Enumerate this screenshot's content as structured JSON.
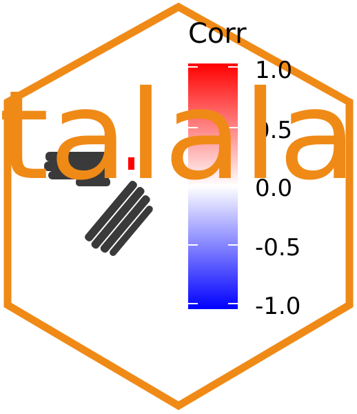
{
  "logo": {
    "word": "talala",
    "color": "#ef8a17"
  },
  "legend": {
    "title": "Corr",
    "ticks": [
      "1.0",
      "0.5",
      "0.0",
      "-0.5",
      "-1.0"
    ],
    "colors": {
      "high": "#ff0000",
      "mid": "#ffffff",
      "low": "#0000ff"
    }
  },
  "plot": {
    "label_color": "#3a3a3a",
    "positive_cell_color": "#ff0000"
  }
}
